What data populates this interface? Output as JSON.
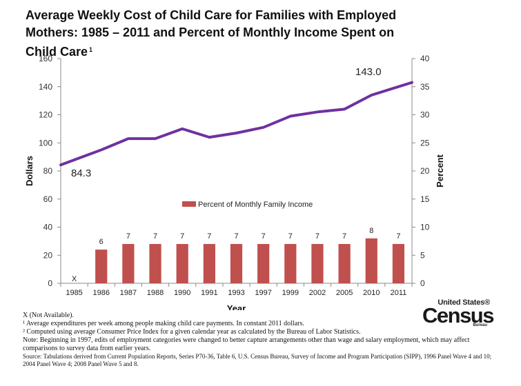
{
  "title_line1": "Average Weekly Cost of Child Care for Families with Employed",
  "title_line2": "Mothers: 1985 – 2011 and Percent of Monthly Income Spent on",
  "title_line3": "Child Care",
  "title_sup": "1",
  "chart_data": {
    "type": "bar+line",
    "categories": [
      "1985",
      "1986",
      "1987",
      "1988",
      "1990",
      "1991",
      "1993",
      "1997",
      "1999",
      "2002",
      "2005",
      "2010",
      "2011"
    ],
    "xlabel": "Year",
    "ylabel_left": "Dollars",
    "ylabel_right": "Percent",
    "ylim_left": [
      0,
      160
    ],
    "yticks_left": [
      "0",
      "20",
      "40",
      "60",
      "80",
      "100",
      "120",
      "140",
      "160"
    ],
    "ylim_right": [
      0,
      40
    ],
    "yticks_right": [
      "0",
      "5",
      "10",
      "15",
      "20",
      "25",
      "30",
      "35",
      "40"
    ],
    "grid": false,
    "legend": "center",
    "line_series": {
      "name": "",
      "axis": "left",
      "color": "#7030A0",
      "values": [
        84.3,
        95,
        103,
        103,
        110,
        104,
        107,
        111,
        119,
        122,
        124,
        134,
        143.0
      ]
    },
    "bar_series": {
      "name": "Percent of Monthly Family Income",
      "axis": "right",
      "color": "#C0504D",
      "values": [
        null,
        6,
        7,
        7,
        7,
        7,
        7,
        7,
        7,
        7,
        7,
        8,
        7
      ],
      "labels": [
        "X",
        "6",
        "7",
        "7",
        "7",
        "7",
        "7",
        "7",
        "7",
        "7",
        "7",
        "8",
        "7"
      ]
    },
    "annotations": [
      {
        "text": "84.3",
        "point_index": 0
      },
      {
        "text": "143.0",
        "point_index": 12
      }
    ]
  },
  "notes": {
    "na": "X (Not Available).",
    "note1": "¹ Average expenditures per week among people making child care payments. In constant 2011 dollars.",
    "note2": "² Computed using average Consumer Price Index for a given calendar year as calculated by the Bureau of Labor Statistics.",
    "note3": "Note: Beginning in 1997, edits of employment categories were changed to better capture arrangements other than wage and salary employment, which may affect comparisons to survey data from earlier years.",
    "source": "Source: Tabulations derived from Current Population Reports, Series P70-36, Table 6, U.S. Census Bureau, Survey of Income and Program Participation (SIPP), 1996 Panel Wave 4 and 10; 2004 Panel Wave 4; 2008 Panel Wave 5 and 8."
  },
  "logo": {
    "line1": "United States®",
    "line2": "Census",
    "line3": "Bureau"
  }
}
